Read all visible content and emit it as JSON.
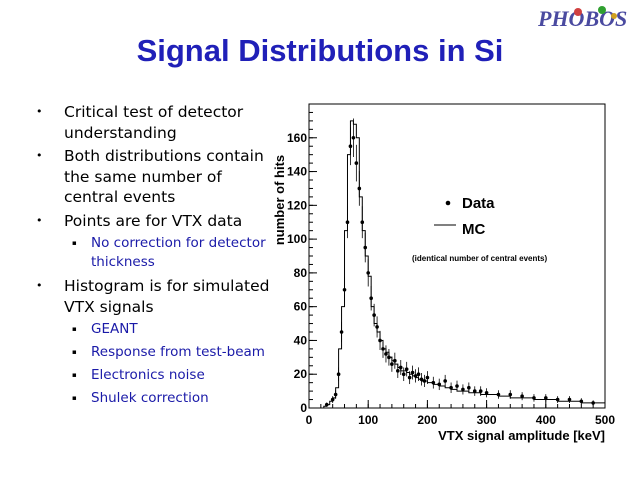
{
  "header": {
    "logo_text": "PHOBOS",
    "title": "Signal Distributions in Si"
  },
  "bullets": [
    {
      "text": "Critical test of detector understanding",
      "sub": []
    },
    {
      "text": "Both distributions contain the same number of central events",
      "sub": []
    },
    {
      "text": "Points are for VTX data",
      "sub": [
        "No correction for detector thickness"
      ]
    },
    {
      "text": "Histogram is for simulated VTX signals",
      "sub": [
        "GEANT",
        "Response from test-beam",
        "Electronics noise",
        "Shulek correction"
      ]
    }
  ],
  "chart_data": {
    "type": "line",
    "xlabel": "VTX signal amplitude [keV]",
    "ylabel": "number of hits",
    "xlim": [
      0,
      500
    ],
    "ylim": [
      0,
      180
    ],
    "xticks": [
      0,
      100,
      200,
      300,
      400,
      500
    ],
    "yticks": [
      0,
      20,
      40,
      60,
      80,
      100,
      120,
      140,
      160
    ],
    "legend_position": "top-right",
    "annotation": "(identical number of central events)",
    "series": [
      {
        "name": "MC",
        "style": "histogram",
        "x": [
          20,
          25,
          30,
          35,
          40,
          45,
          50,
          55,
          60,
          65,
          70,
          75,
          80,
          85,
          90,
          95,
          100,
          105,
          110,
          115,
          120,
          125,
          130,
          135,
          140,
          145,
          150,
          155,
          160,
          165,
          170,
          175,
          180,
          185,
          190,
          195,
          200,
          210,
          220,
          230,
          240,
          250,
          260,
          270,
          280,
          290,
          300,
          320,
          340,
          360,
          380,
          400,
          420,
          440,
          460,
          480
        ],
        "values": [
          0,
          1,
          2,
          4,
          6,
          12,
          35,
          60,
          105,
          150,
          170,
          168,
          160,
          125,
          105,
          90,
          78,
          60,
          50,
          45,
          40,
          35,
          33,
          30,
          28,
          26,
          24,
          22,
          22,
          21,
          20,
          19,
          18,
          17,
          16,
          16,
          15,
          14,
          13,
          12,
          11,
          10,
          10,
          9,
          9,
          8,
          8,
          7,
          6,
          6,
          5,
          5,
          4,
          4,
          3,
          3
        ]
      },
      {
        "name": "Data",
        "style": "points",
        "x": [
          30,
          40,
          45,
          50,
          55,
          60,
          65,
          70,
          75,
          80,
          85,
          90,
          95,
          100,
          105,
          110,
          115,
          120,
          125,
          130,
          135,
          140,
          145,
          150,
          155,
          160,
          165,
          170,
          175,
          180,
          185,
          190,
          195,
          200,
          210,
          220,
          230,
          240,
          250,
          260,
          270,
          280,
          290,
          300,
          320,
          340,
          360,
          380,
          400,
          420,
          440,
          460,
          480
        ],
        "values": [
          2,
          5,
          8,
          20,
          45,
          70,
          110,
          155,
          160,
          145,
          130,
          110,
          95,
          80,
          65,
          55,
          48,
          40,
          35,
          32,
          30,
          26,
          28,
          22,
          24,
          20,
          23,
          18,
          21,
          19,
          20,
          17,
          16,
          18,
          15,
          14,
          16,
          12,
          13,
          11,
          12,
          10,
          10,
          9,
          8,
          8,
          7,
          6,
          6,
          5,
          5,
          4,
          3
        ]
      }
    ]
  }
}
